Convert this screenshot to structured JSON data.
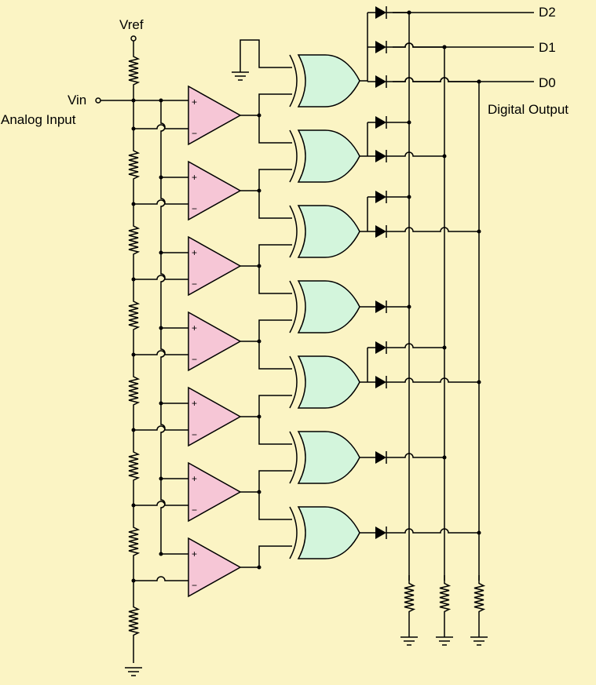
{
  "labels": {
    "vref": "Vref",
    "vin": "Vin",
    "analog_input": "Analog Input",
    "d2": "D2",
    "d1": "D1",
    "d0": "D0",
    "digital_output": "Digital Output",
    "plus": "+",
    "minus": "−"
  },
  "colors": {
    "background": "#fbf4c4",
    "comparator_fill": "#f6c6d6",
    "gate_fill": "#d3f5dc",
    "wire": "#000000"
  },
  "circuit": {
    "comparators": 7,
    "resistor_ladder": 8,
    "xor_gates": 7,
    "output_bits": [
      "D2",
      "D1",
      "D0"
    ],
    "pulldown_resistors": 3
  }
}
